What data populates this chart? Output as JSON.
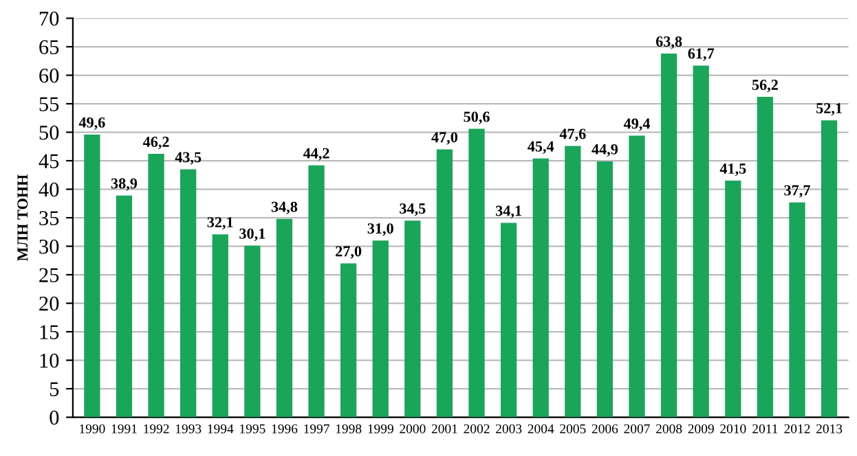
{
  "chart_data": {
    "type": "bar",
    "ylabel": "МЛН ТОНН",
    "categories": [
      "1990",
      "1991",
      "1992",
      "1993",
      "1994",
      "1995",
      "1996",
      "1997",
      "1998",
      "1999",
      "2000",
      "2001",
      "2002",
      "2003",
      "2004",
      "2005",
      "2006",
      "2007",
      "2008",
      "2009",
      "2010",
      "2011",
      "2012",
      "2013"
    ],
    "values": [
      49.6,
      38.9,
      46.2,
      43.5,
      32.1,
      30.1,
      34.8,
      44.2,
      27.0,
      31.0,
      34.5,
      47.0,
      50.6,
      34.1,
      45.4,
      47.6,
      44.9,
      49.4,
      63.8,
      61.7,
      41.5,
      56.2,
      37.7,
      52.1
    ],
    "value_labels": [
      "49,6",
      "38,9",
      "46,2",
      "43,5",
      "32,1",
      "30,1",
      "34,8",
      "44,2",
      "27,0",
      "31,0",
      "34,5",
      "47,0",
      "50,6",
      "34,1",
      "45,4",
      "47,6",
      "44,9",
      "49,4",
      "63,8",
      "61,7",
      "41,5",
      "56,2",
      "37,7",
      "52,1"
    ],
    "color": "#1aa55a",
    "ylim": [
      0,
      70
    ],
    "yticks": [
      0,
      5,
      10,
      15,
      20,
      25,
      30,
      35,
      40,
      45,
      50,
      55,
      60,
      65,
      70
    ],
    "grid": "y",
    "legend": false
  }
}
